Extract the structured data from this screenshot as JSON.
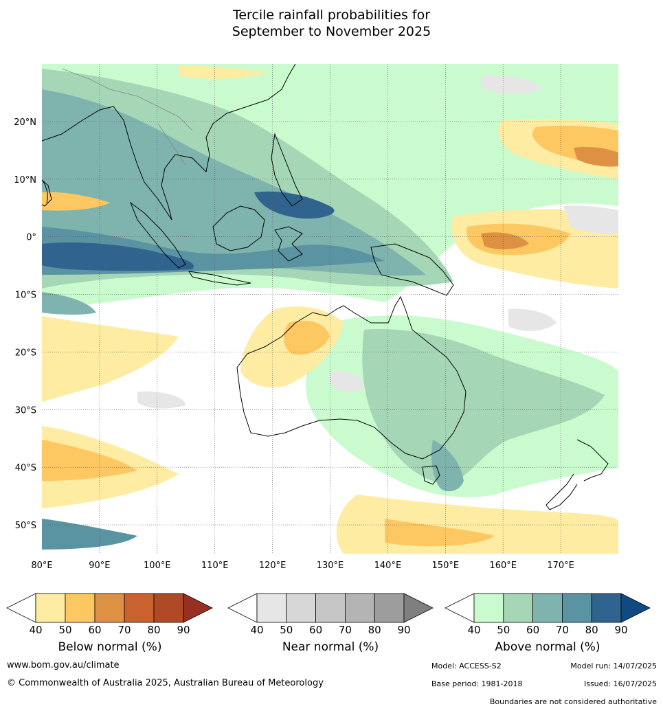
{
  "title": {
    "line1": "Tercile rainfall probabilities for",
    "line2": "September to November 2025"
  },
  "map": {
    "lon_range": [
      80,
      180
    ],
    "lat_range": [
      -55,
      30
    ],
    "lon_ticks": [
      "80°E",
      "90°E",
      "100°E",
      "110°E",
      "120°E",
      "130°E",
      "140°E",
      "150°E",
      "160°E",
      "170°E"
    ],
    "lat_ticks": [
      "20°N",
      "10°N",
      "0°",
      "10°S",
      "20°S",
      "30°S",
      "40°S",
      "50°S"
    ],
    "grid": true
  },
  "colorbars": [
    {
      "label": "Below normal (%)",
      "ticks": [
        "40",
        "50",
        "60",
        "70",
        "80",
        "90"
      ],
      "colors": [
        "#fdeca2",
        "#fdc762",
        "#de9142",
        "#c9622f",
        "#b04a26",
        "#973023"
      ]
    },
    {
      "label": "Near normal (%)",
      "ticks": [
        "40",
        "50",
        "60",
        "70",
        "80",
        "90"
      ],
      "colors": [
        "#e6e6e6",
        "#d7d7d7",
        "#c6c6c6",
        "#b4b4b4",
        "#9d9d9d",
        "#7f7f7f"
      ]
    },
    {
      "label": "Above normal (%)",
      "ticks": [
        "40",
        "50",
        "60",
        "70",
        "80",
        "90"
      ],
      "colors": [
        "#c9fbce",
        "#a5d6b5",
        "#7fb3ad",
        "#5a93a2",
        "#30648f",
        "#0f4a82"
      ]
    }
  ],
  "footer": {
    "website": "www.bom.gov.au/climate",
    "copyright": "© Commonwealth of Australia 2025, Australian Bureau of Meteorology",
    "model": "Model: ACCESS-S2",
    "base_period": "Base period: 1981-2018",
    "model_run": "Model run: 14/07/2025",
    "issued": "Issued: 16/07/2025",
    "disclaimer": "Boundaries are not considered authoritative"
  }
}
